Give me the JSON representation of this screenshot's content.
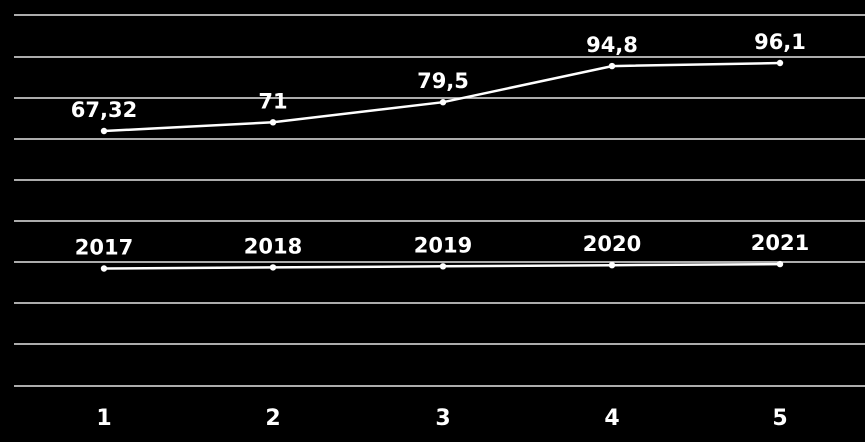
{
  "chart_data": {
    "type": "line",
    "x": [
      "1",
      "2",
      "3",
      "4",
      "5"
    ],
    "series": [
      {
        "values": [
          67.32,
          71,
          79.5,
          94.8,
          96.1
        ],
        "labels": [
          "67,32",
          "71",
          "79,5",
          "94,8",
          "96,1"
        ]
      },
      {
        "values": [
          2017,
          2018,
          2019,
          2020,
          2021
        ],
        "labels": [
          "2017",
          "2018",
          "2019",
          "2020",
          "2021"
        ]
      }
    ],
    "grid": true,
    "legend": false,
    "colors": {
      "background": "#000000",
      "line": "#ffffff",
      "grid": "#e6e6e6",
      "text": "#ffffff"
    }
  }
}
